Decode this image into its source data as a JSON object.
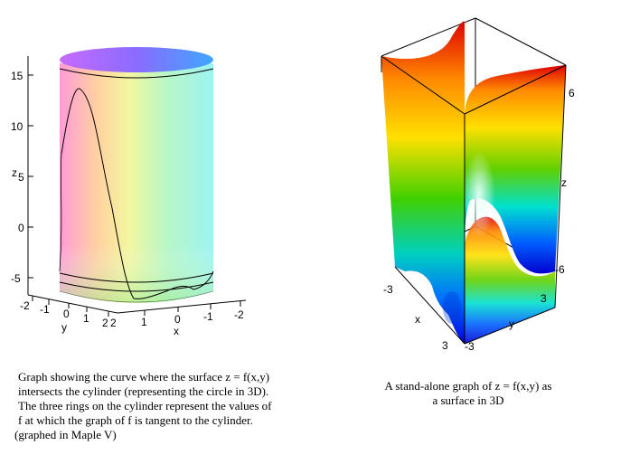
{
  "left_plot": {
    "z_axis": {
      "label": "z",
      "ticks": [
        "15",
        "10",
        "5",
        "0",
        "-5"
      ]
    },
    "y_axis": {
      "label": "y",
      "ticks": [
        "-2",
        "-1",
        "0",
        "1",
        "2"
      ]
    },
    "x_axis": {
      "label": "x",
      "ticks": [
        "2",
        "1",
        "0",
        "-1",
        "-2"
      ]
    }
  },
  "right_plot": {
    "z_axis": {
      "label": "z",
      "ticks": [
        "6",
        "-6"
      ]
    },
    "x_axis": {
      "label": "x",
      "ticks": [
        "-3",
        "3"
      ]
    },
    "y_axis": {
      "label": "y",
      "ticks": [
        "3",
        "-3"
      ]
    }
  },
  "left_caption": [
    "Graph showing the curve where the surface z = f(x,y)",
    "intersects the cylinder (representing the circle in 3D).",
    "The three rings on the cylinder represent the values of",
    "f  at which the graph of f is tangent to the cylinder.",
    "(graphed in Maple V)"
  ],
  "right_caption": [
    "A stand-alone graph of z = f(x,y) as",
    "a surface in 3D"
  ],
  "colors": {
    "background": "#ffffff",
    "axis": "#000000"
  }
}
